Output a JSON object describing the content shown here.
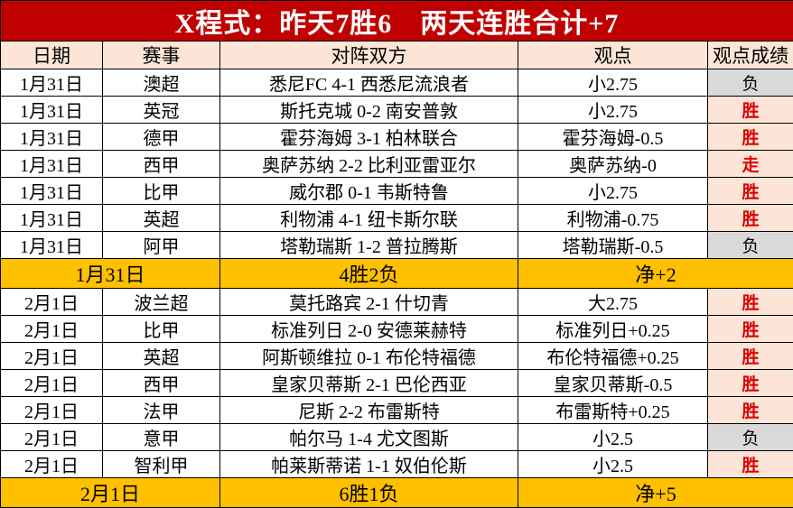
{
  "title": "X程式：昨天7胜6　两天连胜合计+7",
  "columns": [
    "日期",
    "赛事",
    "对阵双方",
    "观点",
    "观点成绩"
  ],
  "colors": {
    "title_bg": "#c00000",
    "title_text": "#ffffff",
    "header_bg": "#fce4d6",
    "summary_bg": "#ffc000",
    "win_bg": "#fce4d6",
    "win_text": "#dd0000",
    "loss_bg": "#d9d9d9",
    "border": "#000000"
  },
  "rows": [
    {
      "type": "match",
      "date": "1月31日",
      "league": "澳超",
      "match": "悉尼FC 4-1 西悉尼流浪者",
      "pick": "小2.75",
      "result": "负",
      "result_type": "loss"
    },
    {
      "type": "match",
      "date": "1月31日",
      "league": "英冠",
      "match": "斯托克城 0-2 南安普敦",
      "pick": "小2.75",
      "result": "胜",
      "result_type": "win"
    },
    {
      "type": "match",
      "date": "1月31日",
      "league": "德甲",
      "match": "霍芬海姆 3-1 柏林联合",
      "pick": "霍芬海姆-0.5",
      "result": "胜",
      "result_type": "win"
    },
    {
      "type": "match",
      "date": "1月31日",
      "league": "西甲",
      "match": "奥萨苏纳 2-2 比利亚雷亚尔",
      "pick": "奥萨苏纳-0",
      "result": "走",
      "result_type": "push"
    },
    {
      "type": "match",
      "date": "1月31日",
      "league": "比甲",
      "match": "威尔郡 0-1 韦斯特鲁",
      "pick": "小2.75",
      "result": "胜",
      "result_type": "win"
    },
    {
      "type": "match",
      "date": "1月31日",
      "league": "英超",
      "match": "利物浦 4-1 纽卡斯尔联",
      "pick": "利物浦-0.75",
      "result": "胜",
      "result_type": "win"
    },
    {
      "type": "match",
      "date": "1月31日",
      "league": "阿甲",
      "match": "塔勒瑞斯 1-2 普拉腾斯",
      "pick": "塔勒瑞斯-0.5",
      "result": "负",
      "result_type": "loss"
    },
    {
      "type": "summary",
      "date": "1月31日",
      "record": "4胜2负",
      "net": "净+2"
    },
    {
      "type": "match",
      "date": "2月1日",
      "league": "波兰超",
      "match": "莫托路宾 2-1 什切青",
      "pick": "大2.75",
      "result": "胜",
      "result_type": "win"
    },
    {
      "type": "match",
      "date": "2月1日",
      "league": "比甲",
      "match": "标准列日 2-0 安德莱赫特",
      "pick": "标准列日+0.25",
      "result": "胜",
      "result_type": "win"
    },
    {
      "type": "match",
      "date": "2月1日",
      "league": "英超",
      "match": "阿斯顿维拉 0-1 布伦特福德",
      "pick": "布伦特福德+0.25",
      "result": "胜",
      "result_type": "win"
    },
    {
      "type": "match",
      "date": "2月1日",
      "league": "西甲",
      "match": "皇家贝蒂斯 2-1 巴伦西亚",
      "pick": "皇家贝蒂斯-0.5",
      "result": "胜",
      "result_type": "win"
    },
    {
      "type": "match",
      "date": "2月1日",
      "league": "法甲",
      "match": "尼斯 2-2 布雷斯特",
      "pick": "布雷斯特+0.25",
      "result": "胜",
      "result_type": "win"
    },
    {
      "type": "match",
      "date": "2月1日",
      "league": "意甲",
      "match": "帕尔马 1-4 尤文图斯",
      "pick": "小2.5",
      "result": "负",
      "result_type": "loss"
    },
    {
      "type": "match",
      "date": "2月1日",
      "league": "智利甲",
      "match": "帕莱斯蒂诺 1-1 奴伯伦斯",
      "pick": "小2.5",
      "result": "胜",
      "result_type": "win"
    },
    {
      "type": "summary",
      "date": "2月1日",
      "record": "6胜1负",
      "net": "净+5"
    }
  ]
}
